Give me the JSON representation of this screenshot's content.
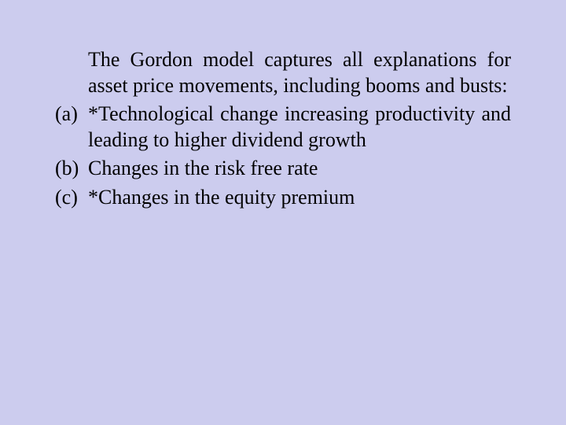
{
  "background_color": "#ccccee",
  "text_color": "#000000",
  "font_family": "Times New Roman, serif",
  "font_size_pt": 20,
  "intro": "The Gordon model captures all explanations for asset price movements, including booms and busts:",
  "items": [
    {
      "marker": "(a)",
      "text": "*Technological change increasing productivity and leading to higher dividend growth",
      "justify": true
    },
    {
      "marker": "(b)",
      "text": "Changes in the risk free rate",
      "justify": false
    },
    {
      "marker": "(c)",
      "text": "*Changes in the equity premium",
      "justify": false
    }
  ]
}
